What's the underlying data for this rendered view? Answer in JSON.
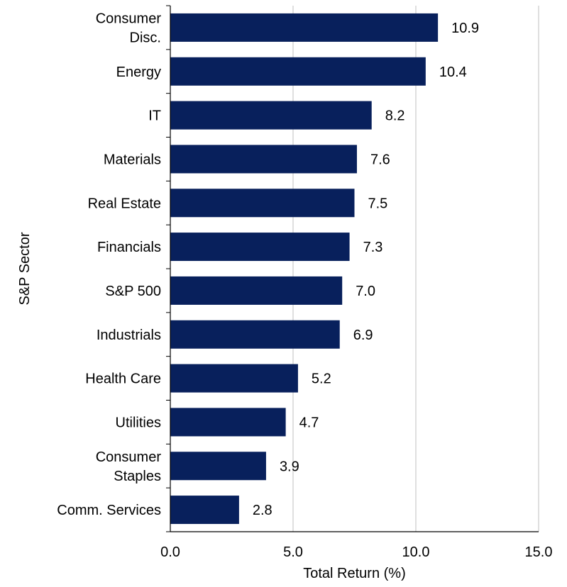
{
  "chart_data": {
    "type": "bar",
    "orientation": "horizontal",
    "categories": [
      "Consumer Disc.",
      "Energy",
      "IT",
      "Materials",
      "Real Estate",
      "Financials",
      "S&P 500",
      "Industrials",
      "Health Care",
      "Utilities",
      "Consumer Staples",
      "Comm. Services"
    ],
    "category_lines": [
      [
        "Consumer",
        "Disc."
      ],
      [
        "Energy"
      ],
      [
        "IT"
      ],
      [
        "Materials"
      ],
      [
        "Real Estate"
      ],
      [
        "Financials"
      ],
      [
        "S&P 500"
      ],
      [
        "Industrials"
      ],
      [
        "Health Care"
      ],
      [
        "Utilities"
      ],
      [
        "Consumer",
        "Staples"
      ],
      [
        "Comm. Services"
      ]
    ],
    "values": [
      10.9,
      10.4,
      8.2,
      7.6,
      7.5,
      7.3,
      7.0,
      6.9,
      5.2,
      4.7,
      3.9,
      2.8
    ],
    "value_labels": [
      "10.9",
      "10.4",
      "8.2",
      "7.6",
      "7.5",
      "7.3",
      "7.0",
      "6.9",
      "5.2",
      "4.7",
      "3.9",
      "2.8"
    ],
    "xlabel": "Total Return (%)",
    "ylabel": "S&P Sector",
    "xlim": [
      0,
      15
    ],
    "xticks": [
      0,
      5,
      10,
      15
    ],
    "xtick_labels": [
      "0.0",
      "5.0",
      "10.0",
      "15.0"
    ],
    "grid": "vertical",
    "bar_color": "#08205C",
    "grid_color": "#BFBFBF",
    "axis_color": "#000000"
  }
}
